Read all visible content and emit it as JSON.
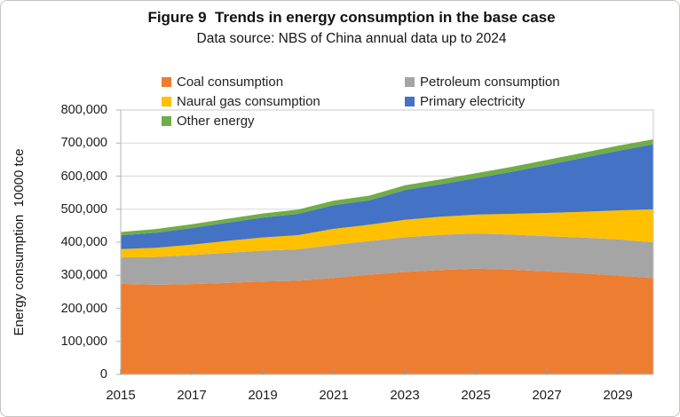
{
  "figure": {
    "title": "Figure 9  Trends in energy consumption in the base case",
    "subtitle": "Data source: NBS of China annual data up to 2024"
  },
  "y_axis": {
    "title": "Energy consumption  10000 tce",
    "tick_labels": [
      "800,000",
      "700,000",
      "600,000",
      "500,000",
      "400,000",
      "300,000",
      "200,000",
      "100,000",
      "0"
    ]
  },
  "x_axis": {
    "tick_labels": [
      "2015",
      "2017",
      "2019",
      "2021",
      "2023",
      "2025",
      "2027",
      "2029"
    ]
  },
  "legend": [
    {
      "label": "Coal consumption",
      "color": "#ED7D31"
    },
    {
      "label": "Petroleum consumption",
      "color": "#A5A5A5"
    },
    {
      "label": "Naural gas consumption",
      "color": "#FFC000"
    },
    {
      "label": "Primary electricity",
      "color": "#4472C4"
    },
    {
      "label": "Other energy",
      "color": "#70AD47"
    }
  ],
  "colors": {
    "coal": "#ED7D31",
    "petroleum": "#A5A5A5",
    "natural_gas": "#FFC000",
    "primary_electricity": "#4472C4",
    "other_energy": "#70AD47",
    "gridline": "#D9D9D9",
    "axis": "#BFBFBF",
    "tick_mark": "#8E99AD"
  },
  "chart_data": {
    "type": "area",
    "stacked": true,
    "title": "Figure 9  Trends in energy consumption in the base case",
    "subtitle": "Data source: NBS of China annual data up to 2024",
    "xlabel": "",
    "ylabel": "Energy consumption  10000 tce",
    "xlim": [
      2015,
      2030
    ],
    "ylim": [
      0,
      800000
    ],
    "y_step": 100000,
    "grid": "horizontal",
    "legend_position": "top-inside",
    "x": [
      2015,
      2016,
      2017,
      2018,
      2019,
      2020,
      2021,
      2022,
      2023,
      2024,
      2025,
      2026,
      2027,
      2028,
      2029,
      2030
    ],
    "series": [
      {
        "name": "Coal consumption",
        "color": "#ED7D31",
        "values": [
          274000,
          271500,
          273500,
          277000,
          281000,
          283500,
          292000,
          302000,
          310000,
          316000,
          320000,
          317000,
          312000,
          306000,
          299000,
          292000
        ]
      },
      {
        "name": "Petroleum consumption",
        "color": "#A5A5A5",
        "values": [
          80000,
          84000,
          87500,
          91000,
          93500,
          95000,
          100000,
          101500,
          105000,
          106000,
          106500,
          106000,
          106500,
          108000,
          109500,
          107500
        ]
      },
      {
        "name": "Naural gas consumption",
        "color": "#FFC000",
        "values": [
          25000,
          27500,
          31500,
          36000,
          40000,
          43000,
          48500,
          49500,
          53000,
          55000,
          57000,
          63000,
          70000,
          78000,
          88000,
          100000
        ]
      },
      {
        "name": "Primary electricity",
        "color": "#4472C4",
        "values": [
          42000,
          46000,
          50500,
          55000,
          60000,
          64500,
          71500,
          74000,
          89500,
          98000,
          110000,
          127000,
          145000,
          163000,
          180000,
          197000
        ]
      },
      {
        "name": "Other energy",
        "color": "#70AD47",
        "values": [
          10000,
          11000,
          11500,
          12000,
          12500,
          13000,
          14000,
          14000,
          14500,
          15000,
          15000,
          15000,
          15500,
          15000,
          15500,
          15000
        ]
      }
    ]
  }
}
